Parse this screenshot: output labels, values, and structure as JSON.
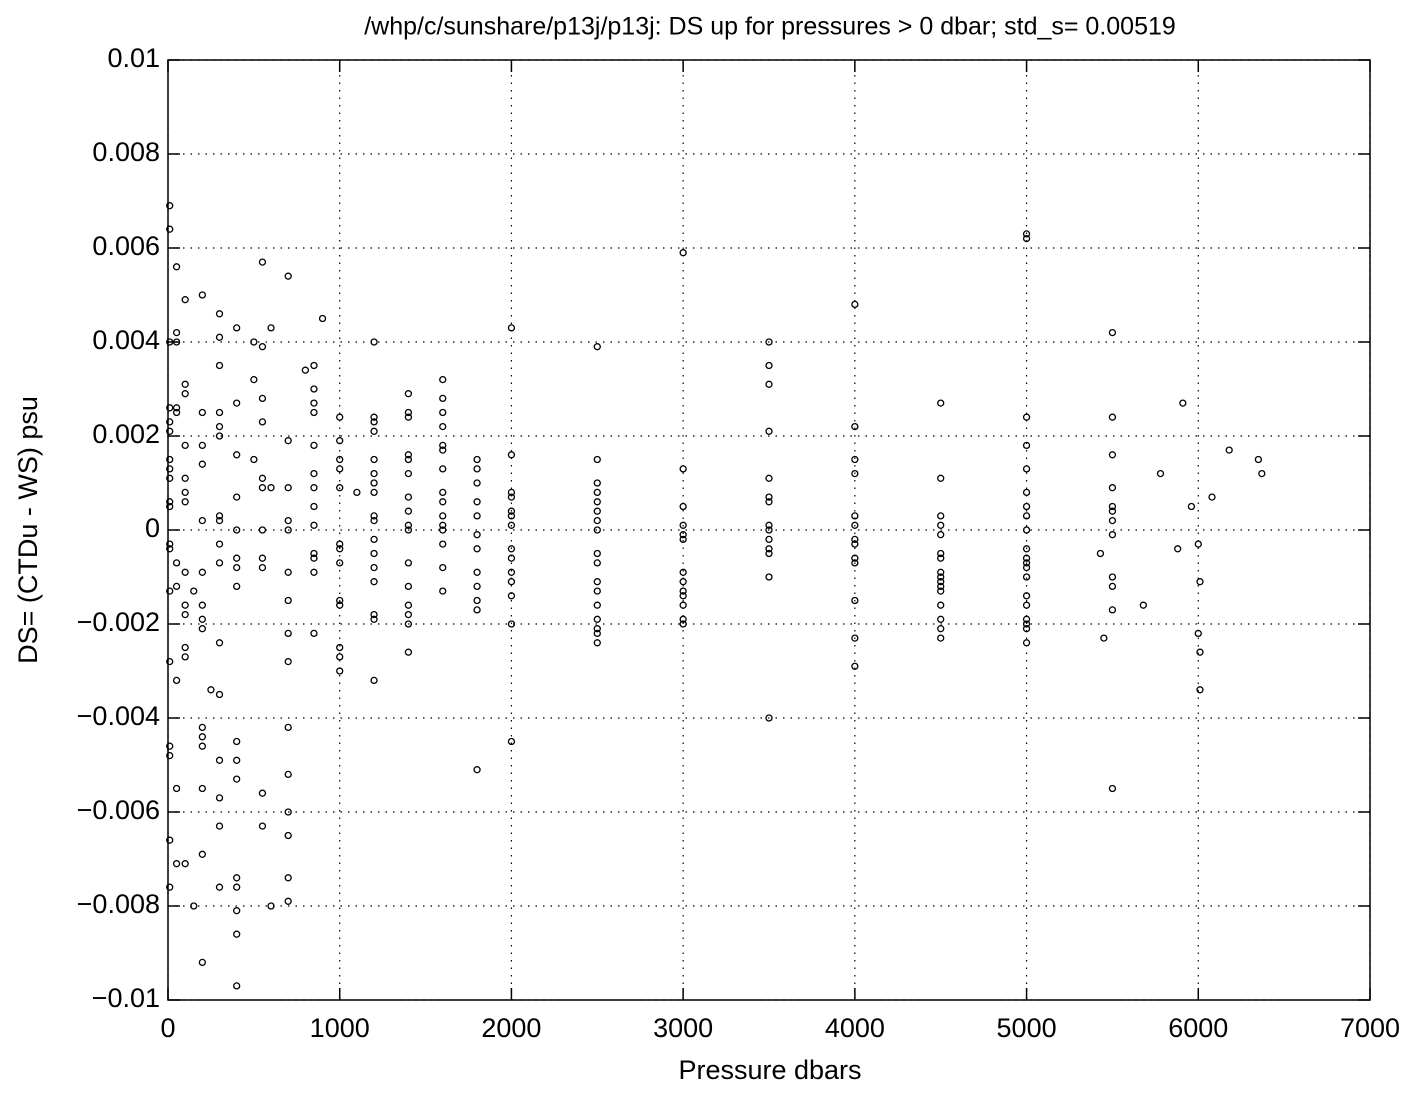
{
  "chart_data": {
    "type": "scatter",
    "title": "/whp/c/sunshare/p13j/p13j:  DS up for pressures > 0 dbar; std_s= 0.00519",
    "xlabel": "Pressure dbars",
    "ylabel": "DS= (CTDu - WS) psu",
    "color": "#000000",
    "grid": true,
    "xlim": [
      0,
      7000
    ],
    "ylim": [
      -0.01,
      0.01
    ],
    "xticks": [
      0,
      1000,
      2000,
      3000,
      4000,
      5000,
      6000,
      7000
    ],
    "yticks": [
      {
        "value": -0.01,
        "label": "−0.01"
      },
      {
        "value": -0.008,
        "label": "−0.008"
      },
      {
        "value": -0.006,
        "label": "−0.006"
      },
      {
        "value": -0.004,
        "label": "−0.004"
      },
      {
        "value": -0.002,
        "label": "−0.002"
      },
      0,
      0.002,
      0.004,
      0.006,
      0.008,
      0.01
    ],
    "x": [
      10,
      10,
      10,
      10,
      10,
      10,
      10,
      10,
      10,
      10,
      10,
      10,
      10,
      10,
      10,
      10,
      10,
      10,
      10,
      50,
      50,
      50,
      50,
      50,
      50,
      50,
      50,
      50,
      50,
      100,
      100,
      100,
      100,
      100,
      100,
      100,
      100,
      100,
      100,
      100,
      100,
      100,
      150,
      150,
      200,
      200,
      200,
      200,
      200,
      200,
      200,
      200,
      200,
      200,
      200,
      200,
      200,
      200,
      200,
      250,
      300,
      300,
      300,
      300,
      300,
      300,
      300,
      300,
      300,
      300,
      300,
      300,
      300,
      300,
      300,
      300,
      400,
      400,
      400,
      400,
      400,
      400,
      400,
      400,
      400,
      400,
      400,
      400,
      400,
      400,
      400,
      400,
      500,
      500,
      500,
      550,
      550,
      550,
      550,
      550,
      550,
      550,
      550,
      550,
      550,
      550,
      600,
      600,
      600,
      700,
      700,
      700,
      700,
      700,
      700,
      700,
      700,
      700,
      700,
      700,
      700,
      700,
      700,
      700,
      800,
      850,
      850,
      850,
      850,
      850,
      850,
      850,
      850,
      850,
      850,
      850,
      850,
      850,
      900,
      1000,
      1000,
      1000,
      1000,
      1000,
      1000,
      1000,
      1000,
      1000,
      1000,
      1000,
      1000,
      1000,
      1100,
      1200,
      1200,
      1200,
      1200,
      1200,
      1200,
      1200,
      1200,
      1200,
      1200,
      1200,
      1200,
      1200,
      1200,
      1200,
      1200,
      1200,
      1400,
      1400,
      1400,
      1400,
      1400,
      1400,
      1400,
      1400,
      1400,
      1400,
      1400,
      1400,
      1400,
      1400,
      1400,
      1400,
      1600,
      1600,
      1600,
      1600,
      1600,
      1600,
      1600,
      1600,
      1600,
      1600,
      1600,
      1600,
      1600,
      1600,
      1600,
      1800,
      1800,
      1800,
      1800,
      1800,
      1800,
      1800,
      1800,
      1800,
      1800,
      1800,
      1800,
      2000,
      2000,
      2000,
      2000,
      2000,
      2000,
      2000,
      2000,
      2000,
      2000,
      2000,
      2000,
      2000,
      2000,
      2500,
      2500,
      2500,
      2500,
      2500,
      2500,
      2500,
      2500,
      2500,
      2500,
      2500,
      2500,
      2500,
      2500,
      2500,
      2500,
      2500,
      3000,
      3000,
      3000,
      3000,
      3000,
      3000,
      3000,
      3000,
      3000,
      3000,
      3000,
      3000,
      3000,
      3500,
      3500,
      3500,
      3500,
      3500,
      3500,
      3500,
      3500,
      3500,
      3500,
      3500,
      3500,
      3500,
      3500,
      4000,
      4000,
      4000,
      4000,
      4000,
      4000,
      4000,
      4000,
      4000,
      4000,
      4000,
      4000,
      4000,
      4500,
      4500,
      4500,
      4500,
      4500,
      4500,
      4500,
      4500,
      4500,
      4500,
      4500,
      4500,
      4500,
      4500,
      4500,
      4500,
      5000,
      5000,
      5000,
      5000,
      5000,
      5000,
      5000,
      5000,
      5000,
      5000,
      5000,
      5000,
      5000,
      5000,
      5000,
      5000,
      5000,
      5000,
      5000,
      5000,
      5500,
      5500,
      5500,
      5500,
      5500,
      5500,
      5500,
      5500,
      5500,
      5500,
      5500,
      5500,
      5430,
      5450,
      5680,
      5780,
      5880,
      5910,
      5960,
      6000,
      6010,
      6000,
      6010,
      6010,
      6080,
      6180,
      6350,
      6370
    ],
    "values": [
      0.0069,
      0.0064,
      0.004,
      0.0026,
      0.0023,
      0.0021,
      0.0015,
      0.0013,
      0.0011,
      0.0006,
      0.0005,
      -0.0003,
      -0.0004,
      -0.0013,
      -0.0028,
      -0.0046,
      -0.0048,
      -0.0066,
      -0.0076,
      0.0056,
      0.0042,
      0.004,
      0.0026,
      0.0025,
      -0.0007,
      -0.0012,
      -0.0032,
      -0.0055,
      -0.0071,
      0.0049,
      0.0031,
      0.0029,
      0.0018,
      0.0011,
      0.0008,
      0.0006,
      -0.0009,
      -0.0016,
      -0.0018,
      -0.0025,
      -0.0027,
      -0.0071,
      -0.008,
      -0.0013,
      0.005,
      0.0025,
      0.0018,
      0.0014,
      0.0002,
      -0.0009,
      -0.0016,
      -0.0019,
      -0.0021,
      -0.0042,
      -0.0044,
      -0.0046,
      -0.0055,
      -0.0069,
      -0.0092,
      -0.0034,
      0.0046,
      0.0041,
      0.0035,
      0.0025,
      0.0022,
      0.002,
      0.0003,
      0.0002,
      -0.0003,
      -0.0007,
      -0.0024,
      -0.0035,
      -0.0049,
      -0.0057,
      -0.0063,
      -0.0076,
      0.0043,
      0.0027,
      0.0016,
      0.0007,
      0.0,
      -0.0006,
      -0.0008,
      -0.0012,
      -0.0045,
      -0.0049,
      -0.0053,
      -0.0074,
      -0.0076,
      -0.0081,
      -0.0086,
      -0.0097,
      0.004,
      0.0032,
      0.0015,
      0.0057,
      0.0039,
      0.0028,
      0.0023,
      0.0011,
      0.0009,
      0.0,
      -0.0006,
      -0.0008,
      -0.0056,
      -0.0063,
      0.0043,
      0.0009,
      -0.008,
      0.0054,
      0.0019,
      0.0009,
      0.0002,
      0.0,
      -0.0009,
      -0.0015,
      -0.0022,
      -0.0028,
      -0.0042,
      -0.0052,
      -0.006,
      -0.0065,
      -0.0074,
      -0.0079,
      0.0034,
      0.0035,
      0.003,
      0.0027,
      0.0025,
      0.0018,
      0.0012,
      0.0009,
      0.0005,
      0.0001,
      -0.0005,
      -0.0006,
      -0.0009,
      -0.0022,
      0.0045,
      0.0024,
      0.0019,
      0.0015,
      0.0013,
      0.0009,
      -0.0003,
      -0.0004,
      -0.0007,
      -0.0015,
      -0.0016,
      -0.0025,
      -0.0027,
      -0.003,
      0.0008,
      0.004,
      0.0024,
      0.0023,
      0.0021,
      0.0015,
      0.0012,
      0.001,
      0.0008,
      0.0003,
      0.0002,
      -0.0002,
      -0.0005,
      -0.0008,
      -0.0011,
      -0.0018,
      -0.0019,
      -0.0032,
      0.0029,
      0.0025,
      0.0024,
      0.0016,
      0.0015,
      0.0012,
      0.0007,
      0.0004,
      0.0001,
      0.0,
      -0.0007,
      -0.0012,
      -0.0016,
      -0.0018,
      -0.002,
      -0.0026,
      0.0032,
      0.0028,
      0.0025,
      0.0022,
      0.0018,
      0.0017,
      0.0013,
      0.0008,
      0.0006,
      0.0003,
      0.0001,
      0.0,
      -0.0003,
      -0.0008,
      -0.0013,
      0.0015,
      0.0013,
      0.001,
      0.0006,
      0.0003,
      -0.0001,
      -0.0004,
      -0.0009,
      -0.0012,
      -0.0015,
      -0.0017,
      -0.0051,
      0.0043,
      0.0016,
      0.0008,
      0.0007,
      0.0004,
      0.0003,
      0.0001,
      -0.0004,
      -0.0006,
      -0.0009,
      -0.0011,
      -0.0014,
      -0.002,
      -0.0045,
      0.0039,
      0.0015,
      0.001,
      0.0008,
      0.0006,
      0.0004,
      0.0002,
      0.0,
      -0.0005,
      -0.0007,
      -0.0011,
      -0.0013,
      -0.0016,
      -0.0019,
      -0.0021,
      -0.0022,
      -0.0024,
      0.0059,
      0.0013,
      0.0005,
      0.0001,
      -0.0001,
      -0.0002,
      -0.0009,
      -0.0011,
      -0.0013,
      -0.0014,
      -0.0016,
      -0.0019,
      -0.002,
      0.004,
      0.0035,
      0.0031,
      0.0021,
      0.0011,
      0.0007,
      0.0006,
      0.0001,
      0.0,
      -0.0002,
      -0.0004,
      -0.0005,
      -0.001,
      -0.004,
      0.0048,
      0.0022,
      0.0015,
      0.0012,
      0.0003,
      0.0001,
      -0.0002,
      -0.0003,
      -0.0006,
      -0.0007,
      -0.0015,
      -0.0023,
      -0.0029,
      0.0027,
      0.0011,
      0.0003,
      0.0001,
      -0.0001,
      -0.0005,
      -0.0006,
      -0.0009,
      -0.001,
      -0.0011,
      -0.0012,
      -0.0013,
      -0.0016,
      -0.0019,
      -0.0021,
      -0.0023,
      0.0063,
      0.0062,
      0.0024,
      0.0018,
      0.0013,
      0.0008,
      0.0005,
      0.0003,
      0.0,
      -0.0004,
      -0.0006,
      -0.0007,
      -0.0008,
      -0.001,
      -0.0014,
      -0.0016,
      -0.0019,
      -0.002,
      -0.0021,
      -0.0024,
      0.0042,
      0.0024,
      0.0016,
      0.0009,
      0.0005,
      0.0004,
      0.0002,
      -0.0001,
      -0.001,
      -0.0012,
      -0.0017,
      -0.0055,
      -0.0005,
      -0.0023,
      -0.0016,
      0.0012,
      -0.0004,
      0.0027,
      0.0005,
      -0.0003,
      -0.0011,
      -0.0022,
      -0.0026,
      -0.0034,
      0.0007,
      0.0017,
      0.0015,
      0.0012
    ]
  }
}
